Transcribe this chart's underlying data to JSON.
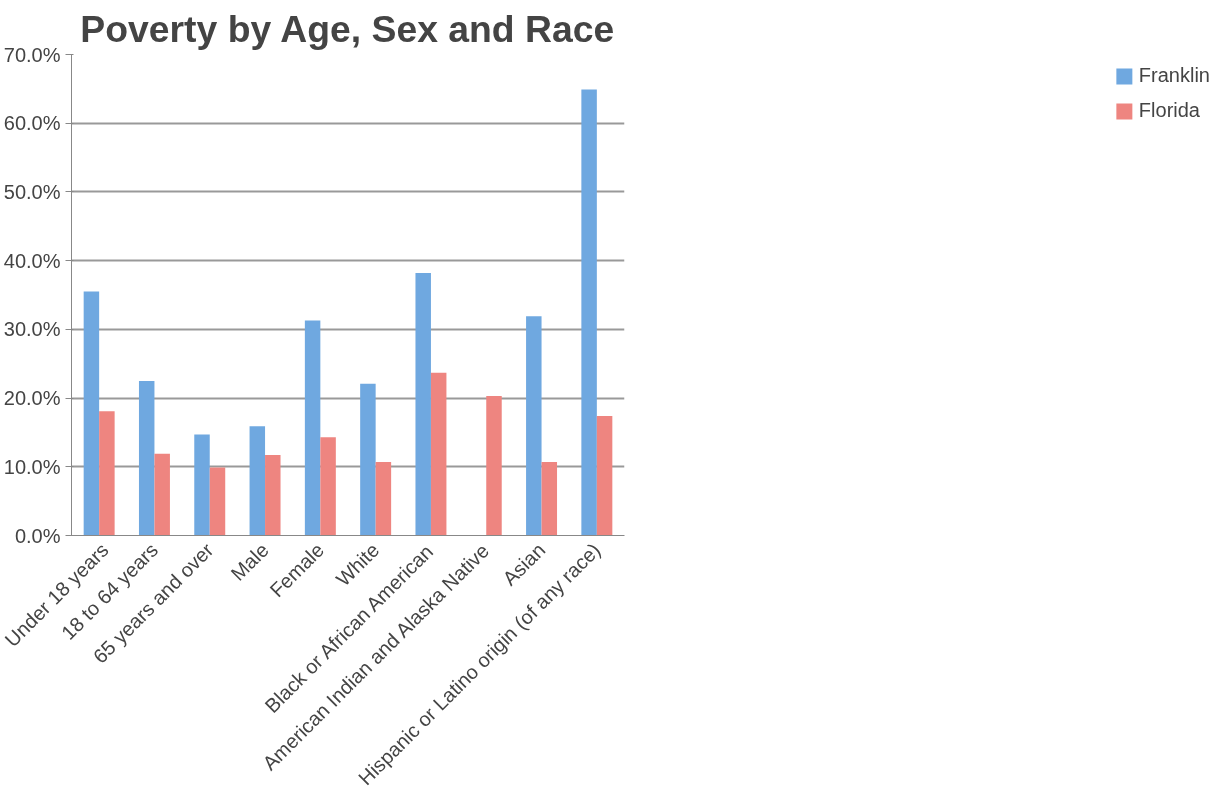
{
  "chart_data": {
    "type": "bar",
    "title": "Poverty by Age, Sex and Race",
    "categories": [
      "Under 18 years",
      "18 to 64 years",
      "65 years and over",
      "Male",
      "Female",
      "White",
      "Black or African American",
      "American Indian and Alaska Native",
      "Asian",
      "Hispanic or Latino origin (of any race)"
    ],
    "series": [
      {
        "name": "Franklin",
        "color": "#6fa8e0",
        "values": [
          35.5,
          22.5,
          14.7,
          15.9,
          31.3,
          22.1,
          38.2,
          null,
          31.9,
          64.9
        ]
      },
      {
        "name": "Florida",
        "color": "#ee8580",
        "values": [
          18.1,
          11.9,
          9.9,
          11.7,
          14.3,
          10.7,
          23.7,
          20.3,
          10.7,
          17.4
        ]
      }
    ],
    "ylim": [
      0,
      70
    ],
    "yticks": [
      {
        "value": 0,
        "label": "0.0%"
      },
      {
        "value": 10,
        "label": "10.0%"
      },
      {
        "value": 20,
        "label": "20.0%"
      },
      {
        "value": 30,
        "label": "30.0%"
      },
      {
        "value": 40,
        "label": "40.0%"
      },
      {
        "value": 50,
        "label": "50.0%"
      },
      {
        "value": 60,
        "label": "60.0%"
      },
      {
        "value": 70,
        "label": "70.0%"
      }
    ],
    "grid": "y",
    "legend": "right"
  }
}
